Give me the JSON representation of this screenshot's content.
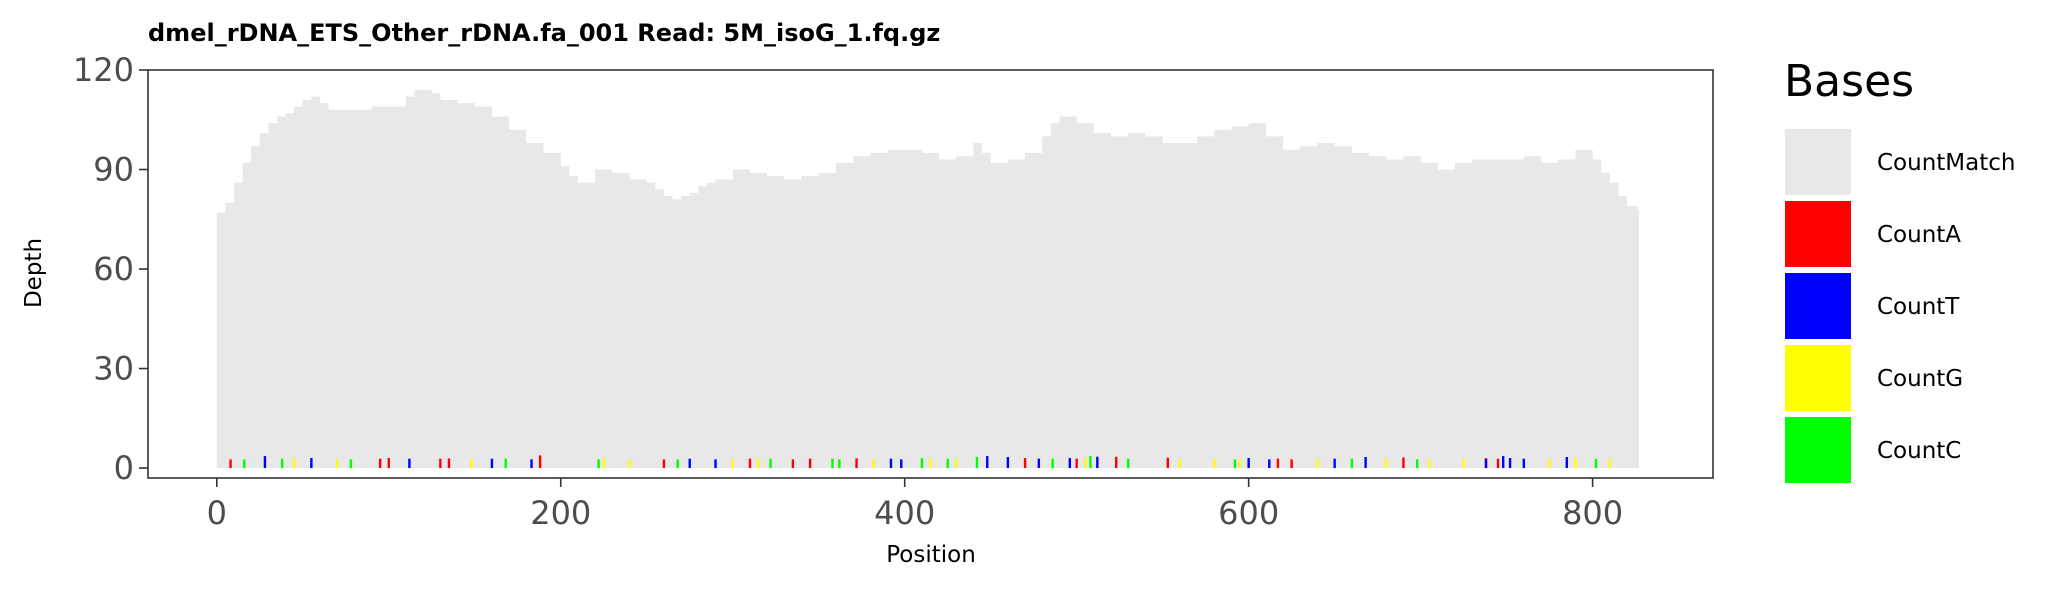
{
  "chart_data": {
    "type": "area",
    "title": "dmel_rDNA_ETS_Other_rDNA.fa_001   Read: 5M_isoG_1.fq.gz",
    "xlabel": "Position",
    "ylabel": "Depth",
    "xlim": [
      -40,
      870
    ],
    "ylim": [
      -3,
      120
    ],
    "x_ticks": [
      0,
      200,
      400,
      600,
      800
    ],
    "y_ticks": [
      0,
      30,
      60,
      90,
      120
    ],
    "grid": false,
    "legend": {
      "title": "Bases",
      "placement": "right",
      "entries": [
        {
          "name": "CountMatch",
          "color": "#e8e8e8"
        },
        {
          "name": "CountA",
          "color": "#ff0000"
        },
        {
          "name": "CountT",
          "color": "#0000ff"
        },
        {
          "name": "CountG",
          "color": "#ffff00"
        },
        {
          "name": "CountC",
          "color": "#00ff00"
        }
      ]
    },
    "series": [
      {
        "name": "CountMatch",
        "color": "#e8e8e8",
        "x": [
          0,
          5,
          10,
          15,
          20,
          25,
          30,
          35,
          40,
          45,
          50,
          55,
          60,
          65,
          70,
          80,
          90,
          100,
          110,
          115,
          120,
          125,
          130,
          140,
          150,
          160,
          170,
          180,
          190,
          200,
          205,
          210,
          220,
          230,
          240,
          250,
          255,
          260,
          265,
          270,
          275,
          280,
          285,
          290,
          300,
          310,
          320,
          330,
          340,
          350,
          360,
          370,
          380,
          390,
          400,
          410,
          420,
          430,
          440,
          445,
          450,
          460,
          470,
          480,
          485,
          490,
          500,
          510,
          520,
          530,
          540,
          550,
          560,
          570,
          580,
          590,
          600,
          610,
          620,
          630,
          640,
          650,
          660,
          670,
          680,
          690,
          700,
          710,
          720,
          730,
          740,
          750,
          760,
          770,
          780,
          790,
          800,
          805,
          810,
          815,
          820,
          826
        ],
        "values": [
          77,
          80,
          86,
          92,
          97,
          101,
          104,
          106,
          107,
          109,
          111,
          112,
          110,
          108,
          108,
          108,
          109,
          109,
          112,
          114,
          114,
          113,
          111,
          110,
          109,
          106,
          102,
          98,
          95,
          91,
          88,
          86,
          90,
          89,
          87,
          86,
          84,
          82,
          81,
          82,
          83,
          85,
          86,
          87,
          90,
          89,
          88,
          87,
          88,
          89,
          92,
          94,
          95,
          96,
          96,
          95,
          93,
          94,
          98,
          95,
          92,
          93,
          95,
          100,
          104,
          106,
          104,
          101,
          100,
          101,
          100,
          98,
          98,
          100,
          102,
          103,
          104,
          100,
          96,
          97,
          98,
          97,
          95,
          94,
          93,
          94,
          92,
          90,
          92,
          93,
          93,
          93,
          94,
          92,
          93,
          96,
          93,
          89,
          86,
          82,
          79,
          78
        ]
      },
      {
        "name": "CountA",
        "color": "#ff0000",
        "x": [
          8,
          95,
          100,
          130,
          135,
          188,
          260,
          310,
          335,
          345,
          372,
          470,
          500,
          523,
          553,
          617,
          625,
          690,
          738,
          745
        ],
        "values": [
          0.8,
          1.0,
          1.2,
          1.0,
          1.1,
          2.0,
          0.8,
          1.0,
          0.8,
          1.0,
          1.1,
          1.2,
          1.0,
          1.6,
          1.3,
          1.0,
          0.8,
          1.4,
          1.2,
          1.0
        ]
      },
      {
        "name": "CountT",
        "color": "#0000ff",
        "x": [
          28,
          55,
          112,
          160,
          183,
          275,
          290,
          392,
          398,
          448,
          460,
          478,
          496,
          512,
          600,
          612,
          650,
          668,
          738,
          748,
          752,
          760,
          785
        ],
        "values": [
          1.8,
          1.2,
          1.0,
          1.0,
          0.8,
          1.0,
          0.8,
          1.0,
          0.8,
          1.8,
          1.5,
          1.0,
          1.2,
          1.6,
          1.2,
          0.8,
          1.0,
          1.5,
          0.8,
          1.8,
          1.2,
          1.0,
          1.5
        ]
      },
      {
        "name": "CountG",
        "color": "#ffff00",
        "x": [
          45,
          70,
          148,
          225,
          240,
          300,
          315,
          382,
          415,
          430,
          505,
          560,
          580,
          595,
          640,
          680,
          705,
          725,
          775,
          790,
          810
        ],
        "values": [
          1.0,
          0.8,
          0.8,
          1.0,
          0.8,
          0.8,
          1.0,
          0.8,
          1.0,
          1.0,
          1.2,
          0.8,
          0.8,
          1.0,
          0.8,
          1.0,
          0.8,
          1.0,
          0.8,
          1.2,
          1.0
        ]
      },
      {
        "name": "CountC",
        "color": "#00ff00",
        "x": [
          16,
          38,
          78,
          168,
          222,
          268,
          322,
          358,
          362,
          410,
          425,
          442,
          486,
          508,
          530,
          592,
          660,
          698,
          802
        ],
        "values": [
          0.8,
          1.0,
          0.8,
          1.0,
          0.8,
          0.8,
          1.0,
          1.0,
          0.8,
          1.2,
          1.0,
          1.5,
          1.0,
          1.8,
          1.0,
          0.8,
          1.0,
          0.8,
          1.0
        ]
      }
    ]
  }
}
